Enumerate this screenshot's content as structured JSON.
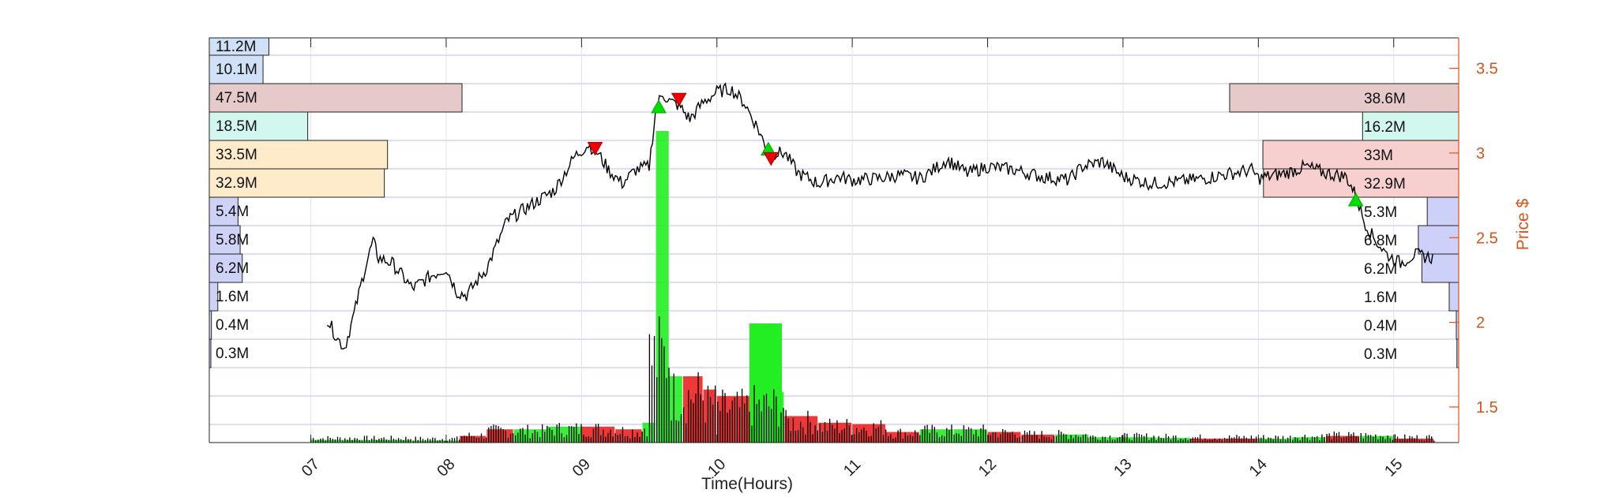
{
  "chart_data": {
    "type": "volume-profile-candlestick",
    "xlabel": "Time(Hours)",
    "ylabel": "Price $",
    "x_ticks": [
      "07",
      "08",
      "09",
      "10",
      "11",
      "12",
      "13",
      "14",
      "15"
    ],
    "y_ticks": [
      "1.5",
      "2",
      "2.5",
      "3",
      "3.5"
    ],
    "xlim_hours": [
      6.25,
      15.48
    ],
    "ylim_price": [
      1.29,
      3.68
    ],
    "grid": true,
    "colors": {
      "axis": "#d95319",
      "grid": "#b8bce8",
      "price_line": "#000000",
      "volume_up": "#22ee22",
      "volume_down": "#ee2222",
      "buy_marker": "#00dd00",
      "sell_marker": "#ee0000"
    },
    "left_profile": {
      "bin_labels": [
        "11.2M",
        "10.1M",
        "47.5M",
        "18.5M",
        "33.5M",
        "32.9M",
        "5.4M",
        "5.8M",
        "6.2M",
        "1.6M",
        "0.4M",
        "0.3M"
      ],
      "values_millions": [
        11.2,
        10.1,
        47.5,
        18.5,
        33.5,
        32.9,
        5.4,
        5.8,
        6.2,
        1.6,
        0.4,
        0.3
      ],
      "bin_colors": [
        "#cfe0f7",
        "#cfe0f7",
        "#e6c9c9",
        "#d2f7ef",
        "#fdebc9",
        "#fdebc9",
        "#cfd2f7",
        "#cfd2f7",
        "#cfd2f7",
        "#cfd2f7",
        "#cfd2f7",
        "#cfd2f7"
      ]
    },
    "right_profile": {
      "bin_labels": [
        "38.6M",
        "16.2M",
        "33M",
        "32.9M",
        "5.3M",
        "6.8M",
        "6.2M",
        "1.6M",
        "0.4M",
        "0.3M"
      ],
      "values_millions": [
        38.6,
        16.2,
        33,
        32.9,
        5.3,
        6.8,
        6.2,
        1.6,
        0.4,
        0.3
      ],
      "bin_colors": [
        "#e6c9c9",
        "#d2f7ef",
        "#f8cfcf",
        "#f8cfcf",
        "#cdd0f8",
        "#cdd0f8",
        "#cdd0f8",
        "#cdd0f8",
        "#cdd0f8",
        "#cdd0f8"
      ]
    },
    "price_series": {
      "time_hours": [
        7.12,
        7.2,
        7.25,
        7.32,
        7.4,
        7.46,
        7.5,
        7.6,
        7.75,
        7.9,
        8.0,
        8.08,
        8.15,
        8.3,
        8.45,
        8.6,
        8.8,
        8.95,
        9.05,
        9.12,
        9.2,
        9.3,
        9.4,
        9.5,
        9.55,
        9.6,
        9.66,
        9.72,
        9.8,
        9.9,
        10.0,
        10.1,
        10.2,
        10.3,
        10.38,
        10.5,
        10.6,
        10.75,
        10.9,
        11.0,
        11.2,
        11.35,
        11.5,
        11.6,
        11.7,
        11.85,
        12.0,
        12.2,
        12.4,
        12.6,
        12.7,
        12.85,
        13.0,
        13.2,
        13.4,
        13.6,
        13.8,
        13.95,
        14.0,
        14.2,
        14.35,
        14.5,
        14.65,
        14.72,
        14.78,
        14.85,
        14.95,
        15.05,
        15.15,
        15.3
      ],
      "price": [
        2.02,
        1.9,
        1.85,
        2.05,
        2.32,
        2.48,
        2.38,
        2.35,
        2.2,
        2.28,
        2.32,
        2.18,
        2.16,
        2.32,
        2.6,
        2.68,
        2.78,
        2.98,
        3.05,
        3.0,
        2.9,
        2.82,
        2.9,
        2.92,
        3.27,
        3.35,
        3.3,
        3.28,
        3.2,
        3.3,
        3.36,
        3.38,
        3.3,
        3.15,
        3.0,
        3.0,
        2.88,
        2.82,
        2.86,
        2.84,
        2.85,
        2.87,
        2.85,
        2.9,
        2.96,
        2.88,
        2.92,
        2.9,
        2.86,
        2.84,
        2.92,
        2.95,
        2.86,
        2.82,
        2.83,
        2.85,
        2.88,
        2.9,
        2.85,
        2.88,
        2.92,
        2.88,
        2.86,
        2.75,
        2.6,
        2.5,
        2.4,
        2.35,
        2.4,
        2.38
      ]
    },
    "volume_bins": {
      "start_hours": [
        7.0,
        7.45,
        7.75,
        8.1,
        8.3,
        8.5,
        8.75,
        9.0,
        9.25,
        9.45,
        9.55,
        9.65,
        9.75,
        9.9,
        10.0,
        10.25,
        10.5,
        10.75,
        11.0,
        11.25,
        11.5,
        11.75,
        12.0,
        12.25,
        12.5,
        12.75,
        13.0,
        13.25,
        13.5,
        13.75,
        14.0,
        14.25,
        14.5,
        14.75,
        15.0
      ],
      "height_fraction": [
        0.02,
        0.02,
        0.015,
        0.05,
        0.1,
        0.1,
        0.12,
        0.12,
        0.1,
        0.15,
        1.0,
        0.5,
        0.5,
        0.4,
        0.35,
        0.38,
        0.2,
        0.15,
        0.14,
        0.08,
        0.1,
        0.1,
        0.08,
        0.06,
        0.06,
        0.04,
        0.04,
        0.035,
        0.03,
        0.03,
        0.03,
        0.04,
        0.05,
        0.05,
        0.03
      ],
      "direction": [
        "up",
        "up",
        "up",
        "down",
        "down",
        "up",
        "up",
        "down",
        "down",
        "up",
        "up",
        "up",
        "down",
        "down",
        "down",
        "up",
        "down",
        "down",
        "down",
        "down",
        "up",
        "up",
        "down",
        "down",
        "up",
        "up",
        "up",
        "up",
        "down",
        "down",
        "up",
        "up",
        "down",
        "up",
        "down"
      ]
    },
    "markers": {
      "buy": [
        [
          9.57,
          3.27
        ],
        [
          10.38,
          3.02
        ],
        [
          14.72,
          2.72
        ]
      ],
      "sell": [
        [
          9.1,
          3.03
        ],
        [
          9.72,
          3.32
        ],
        [
          10.4,
          2.97
        ]
      ]
    }
  }
}
